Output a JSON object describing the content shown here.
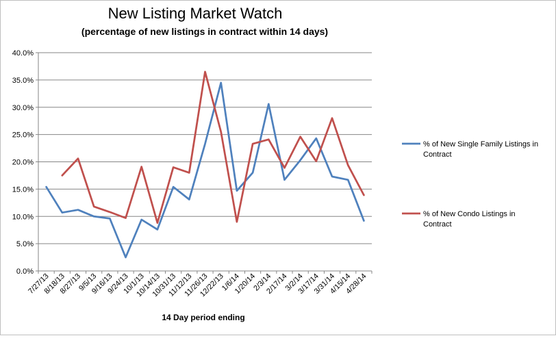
{
  "chart_data": {
    "type": "line",
    "title": "New Listing Market Watch",
    "subtitle": "(percentage of new listings in contract within 14 days)",
    "xlabel": "14 Day period ending",
    "ylabel": "",
    "ylim": [
      0,
      40
    ],
    "yticks": [
      "0.0%",
      "5.0%",
      "10.0%",
      "15.0%",
      "20.0%",
      "25.0%",
      "30.0%",
      "35.0%",
      "40.0%"
    ],
    "grid": true,
    "legend_placement": "right",
    "categories": [
      "7/27/13",
      "8/18/13",
      "8/27/13",
      "9/5/13",
      "9/16/13",
      "9/24/13",
      "10/1/13",
      "10/14/13",
      "10/31/13",
      "11/12/13",
      "11/26/13",
      "12/22/13",
      "1/6/14",
      "1/20/14",
      "2/3/14",
      "2/17/14",
      "3/2/14",
      "3/17/14",
      "3/31/14",
      "4/15/14",
      "4/28/14"
    ],
    "series": [
      {
        "name": "% of New Single Family Listings in Contract",
        "color": "#4f81bd",
        "values": [
          15.4,
          10.7,
          11.2,
          10.0,
          9.6,
          2.5,
          9.4,
          7.6,
          15.4,
          13.1,
          23.3,
          34.5,
          14.7,
          18.0,
          30.6,
          16.7,
          20.3,
          24.3,
          17.3,
          16.7,
          9.2
        ]
      },
      {
        "name": "% of New Condo  Listings in Contract",
        "color": "#c0504d",
        "values": [
          null,
          17.5,
          20.6,
          11.8,
          10.8,
          9.7,
          19.1,
          8.8,
          19.0,
          18.0,
          36.5,
          25.5,
          9.0,
          23.3,
          24.1,
          18.9,
          24.6,
          20.1,
          28.0,
          19.4,
          13.9
        ]
      }
    ]
  }
}
